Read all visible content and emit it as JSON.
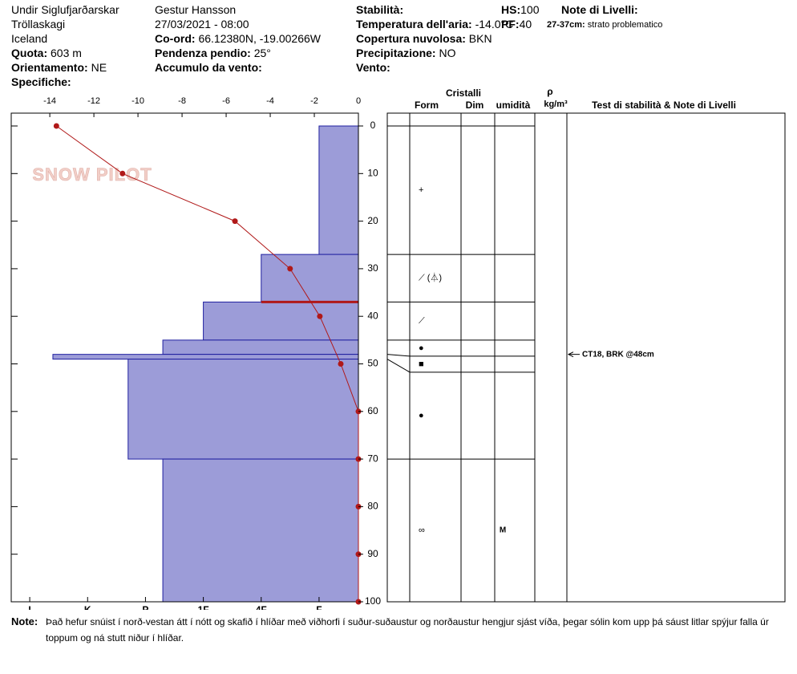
{
  "header": {
    "location": "Undir Siglufjarðarskar",
    "region": "Tröllaskagi",
    "country": "Iceland",
    "elevation": {
      "label": "Quota:",
      "value": "603 m"
    },
    "aspect": {
      "label": "Orientamento:",
      "value": "NE"
    },
    "specifics_label": "Specifiche:",
    "observer": "Gestur Hansson",
    "datetime": "27/03/2021 - 08:00",
    "coords": {
      "label": "Co-ord:",
      "value": "66.12380N, -19.00266W"
    },
    "slope": {
      "label": "Pendenza pendio:",
      "value": "25°"
    },
    "wind_loading_label": "Accumulo da vento:",
    "stability_label": "Stabilità:",
    "air_temp": {
      "label": "Temperatura dell'aria:",
      "value": "-14.0°C"
    },
    "sky": {
      "label": "Copertura nuvolosa:",
      "value": "BKN"
    },
    "precip": {
      "label": "Precipitazione:",
      "value": "NO"
    },
    "wind_label": "Vento:",
    "hs": {
      "label": "HS:",
      "value": "100"
    },
    "pf": {
      "label": "PF:",
      "value": "40"
    },
    "layer_notes_label": "Note di Livelli:",
    "layer_note": {
      "label": "27-37cm:",
      "value": "strato problematico"
    }
  },
  "logo": "SNOW PILOT",
  "chart_data": {
    "type": "snow-profile",
    "temperature": {
      "color": "#b01818",
      "depths": [
        0,
        10,
        20,
        30,
        40,
        50,
        60,
        70,
        80,
        90,
        100
      ],
      "values": [
        -13.7,
        -10.7,
        -5.6,
        -3.1,
        -1.75,
        -0.8,
        0,
        0,
        0,
        0,
        0
      ]
    },
    "xlim": [
      -15.75,
      0
    ],
    "xticks": [
      -14,
      -12,
      -10,
      -8,
      -6,
      -4,
      -2,
      0
    ],
    "ylim": [
      -2.7,
      100
    ],
    "yticks": [
      0,
      10,
      20,
      30,
      40,
      50,
      60,
      70,
      80,
      90,
      100
    ],
    "layers": {
      "color": "#9c9cd8",
      "edge": "#2020a0",
      "tops": [
        0,
        27,
        37,
        45,
        48,
        49,
        70
      ],
      "bottoms": [
        27,
        37,
        45,
        48,
        49,
        70,
        100
      ],
      "hardness": [
        1,
        2,
        3,
        3.7,
        5.6,
        4.3,
        3.7
      ]
    },
    "hardness_lim": [
      0.32,
      6.32
    ],
    "hardness_ticks": [
      {
        "value": 6,
        "label": "I"
      },
      {
        "value": 5,
        "label": "K"
      },
      {
        "value": 4,
        "label": "P"
      },
      {
        "value": 3,
        "label": "1F"
      },
      {
        "value": 2,
        "label": "4F"
      },
      {
        "value": 1,
        "label": "F"
      }
    ],
    "problem_depth": 37,
    "problem_color": "#b01818"
  },
  "table": {
    "headers": {
      "crystals": "Cristalli",
      "form": "Form",
      "size": "Dim",
      "wetness": "umidità",
      "density_symbol": "ρ",
      "density_unit": "kg/m³",
      "tests": "Test di stabilità & Note di Livelli"
    },
    "forms": [
      "+",
      "⟋ (⏃)",
      "⟋",
      "●",
      "■",
      "●",
      "∞"
    ],
    "wetness": [
      null,
      null,
      null,
      null,
      null,
      null,
      "M"
    ]
  },
  "tests": [
    {
      "depth": 48,
      "label": "CT18, BRK @48cm"
    }
  ],
  "note": {
    "label": "Note:",
    "text": "Það hefur snúist í norð-vestan átt í nótt og skafið í hlíðar með viðhorfi í suður-suðaustur og norðaustur hengjur sjást víða, þegar sólin kom upp þá sáust litlar spýjur falla úr toppum og ná stutt niður í hlíðar."
  }
}
